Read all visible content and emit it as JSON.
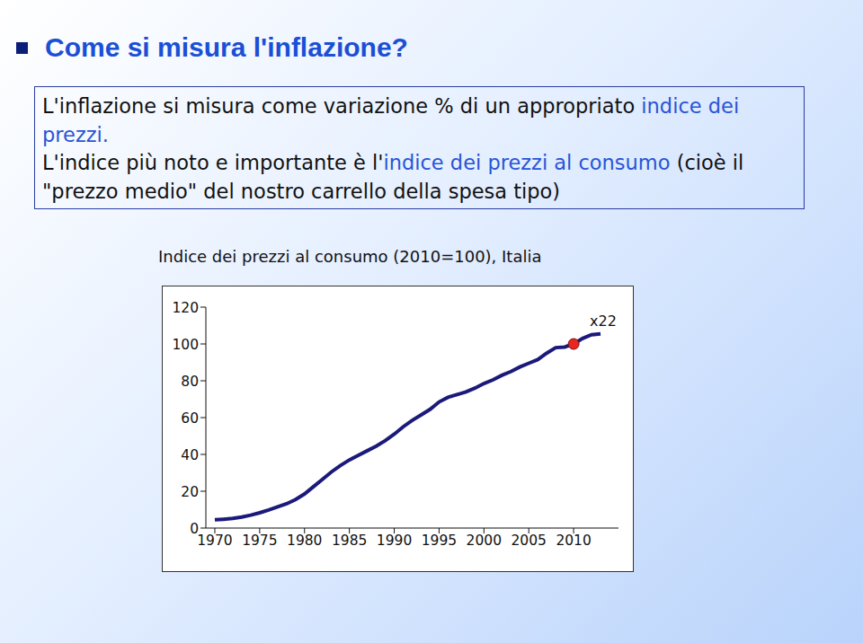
{
  "slide": {
    "title": "Come si misura l'inflazione?",
    "box": {
      "paragraphs": [
        [
          {
            "text": "L'inflazione si misura come variazione % di un appropriato ",
            "emphasis": false
          },
          {
            "text": "indice dei prezzi.",
            "emphasis": true
          }
        ],
        [
          {
            "text": "L'indice più noto e importante è l'",
            "emphasis": false
          },
          {
            "text": "indice dei prezzi al consumo",
            "emphasis": true
          },
          {
            "text": " (cioè il \"prezzo medio\" del nostro carrello della spesa tipo)",
            "emphasis": false
          }
        ]
      ]
    }
  },
  "chart_data": {
    "type": "line",
    "title": "Indice dei prezzi al consumo (2010=100), Italia",
    "x": [
      1970,
      1971,
      1972,
      1973,
      1974,
      1975,
      1976,
      1977,
      1978,
      1979,
      1980,
      1981,
      1982,
      1983,
      1984,
      1985,
      1986,
      1987,
      1988,
      1989,
      1990,
      1991,
      1992,
      1993,
      1994,
      1995,
      1996,
      1997,
      1998,
      1999,
      2000,
      2001,
      2002,
      2003,
      2004,
      2005,
      2006,
      2007,
      2008,
      2009,
      2010,
      2011,
      2012,
      2013
    ],
    "values": [
      4.5,
      4.8,
      5.2,
      6,
      7,
      8.3,
      9.8,
      11.5,
      13.2,
      15.5,
      18.5,
      22.5,
      26.5,
      30.5,
      34,
      37,
      39.5,
      42,
      44.5,
      47.5,
      51,
      55,
      58.5,
      61.5,
      64.5,
      68.5,
      71,
      72.5,
      74,
      76,
      78.5,
      80.5,
      83,
      85,
      87.5,
      89.5,
      91.5,
      95,
      98,
      98.3,
      100,
      103,
      105,
      105.5
    ],
    "color": "#1b1a7a",
    "xlim": [
      1969,
      2015
    ],
    "xticks": [
      1970,
      1975,
      1980,
      1985,
      1990,
      1995,
      2000,
      2005,
      2010
    ],
    "ylim": [
      0,
      120
    ],
    "yticks": [
      0,
      20,
      40,
      60,
      80,
      100,
      120
    ],
    "grid": false,
    "highlight": {
      "x": 2010,
      "y": 100,
      "color": "#e8251f",
      "label": "x22"
    }
  }
}
